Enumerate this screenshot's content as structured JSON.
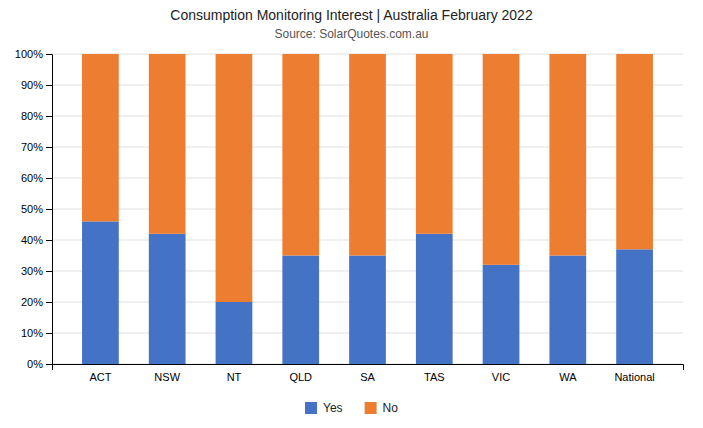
{
  "chart_data": {
    "type": "bar",
    "title": "Consumption Monitoring Interest | Australia February 2022",
    "subtitle": "Source: SolarQuotes.com.au",
    "categories": [
      "ACT",
      "NSW",
      "NT",
      "QLD",
      "SA",
      "TAS",
      "VIC",
      "WA",
      "National"
    ],
    "series": [
      {
        "name": "Yes",
        "color": "#4472C4",
        "values": [
          46,
          42,
          20,
          35,
          35,
          42,
          32,
          35,
          37
        ]
      },
      {
        "name": "No",
        "color": "#ED7D31",
        "values": [
          54,
          58,
          80,
          65,
          65,
          58,
          68,
          65,
          63
        ]
      }
    ],
    "stacked": true,
    "ylim": [
      0,
      100
    ],
    "yticks": [
      {
        "value": 0,
        "label": "0%"
      },
      {
        "value": 10,
        "label": "10%"
      },
      {
        "value": 20,
        "label": "20%"
      },
      {
        "value": 30,
        "label": "30%"
      },
      {
        "value": 40,
        "label": "40%"
      },
      {
        "value": 50,
        "label": "50%"
      },
      {
        "value": 60,
        "label": "60%"
      },
      {
        "value": 70,
        "label": "70%"
      },
      {
        "value": 80,
        "label": "80%"
      },
      {
        "value": 90,
        "label": "90%"
      },
      {
        "value": 100,
        "label": "100%"
      }
    ],
    "grid": true,
    "legend": "bottom"
  }
}
